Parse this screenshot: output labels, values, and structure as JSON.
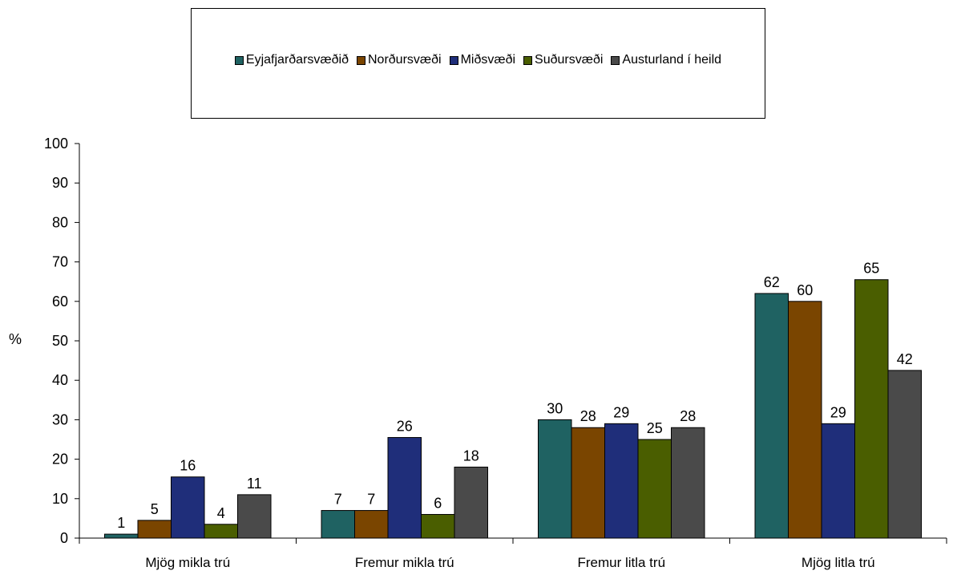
{
  "chart_data": {
    "type": "bar",
    "title": "",
    "xlabel": "",
    "ylabel": "%",
    "ylim": [
      0,
      100
    ],
    "yticks": [
      0,
      10,
      20,
      30,
      40,
      50,
      60,
      70,
      80,
      90,
      100
    ],
    "categories": [
      "Mjög mikla trú",
      "Fremur mikla trú",
      "Fremur litla trú",
      "Mjög litla trú"
    ],
    "series": [
      {
        "name": "Eyjafjarðarsvæðið",
        "color": "#1f6262",
        "values": [
          1,
          7,
          30,
          62
        ],
        "labels": [
          "1",
          "7",
          "30",
          "62"
        ]
      },
      {
        "name": "Norðursvæði",
        "color": "#7a4500",
        "values": [
          4.5,
          7,
          28,
          60
        ],
        "labels": [
          "5",
          "7",
          "28",
          "60"
        ]
      },
      {
        "name": "Miðsvæði",
        "color": "#1f2e7a",
        "values": [
          15.5,
          25.5,
          29,
          29
        ],
        "labels": [
          "16",
          "26",
          "29",
          "29"
        ]
      },
      {
        "name": "Suðursvæði",
        "color": "#4a5e00",
        "values": [
          3.5,
          6,
          25,
          65.5
        ],
        "labels": [
          "4",
          "6",
          "25",
          "65"
        ]
      },
      {
        "name": "Austurland í heild",
        "color": "#4a4a4a",
        "values": [
          11,
          18,
          28,
          42.5
        ],
        "labels": [
          "11",
          "18",
          "28",
          "42"
        ]
      }
    ],
    "legend_position": "top",
    "grid": false
  }
}
